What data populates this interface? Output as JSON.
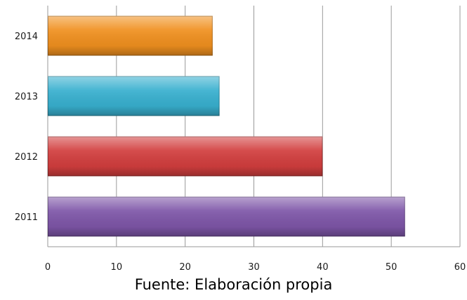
{
  "chart_data": {
    "type": "bar",
    "orientation": "horizontal",
    "categories": [
      "2014",
      "2013",
      "2012",
      "2011"
    ],
    "values": [
      24,
      25,
      40,
      52
    ],
    "bar_colors": [
      "#F0901F",
      "#38B0CF",
      "#D23E3E",
      "#7E56A8"
    ],
    "xlim": [
      0,
      60
    ],
    "xticks": [
      "0",
      "10",
      "20",
      "30",
      "40",
      "50",
      "60"
    ],
    "xlabel": "",
    "ylabel": "",
    "grid": true
  },
  "source_note": "Fuente: Elaboración propia"
}
